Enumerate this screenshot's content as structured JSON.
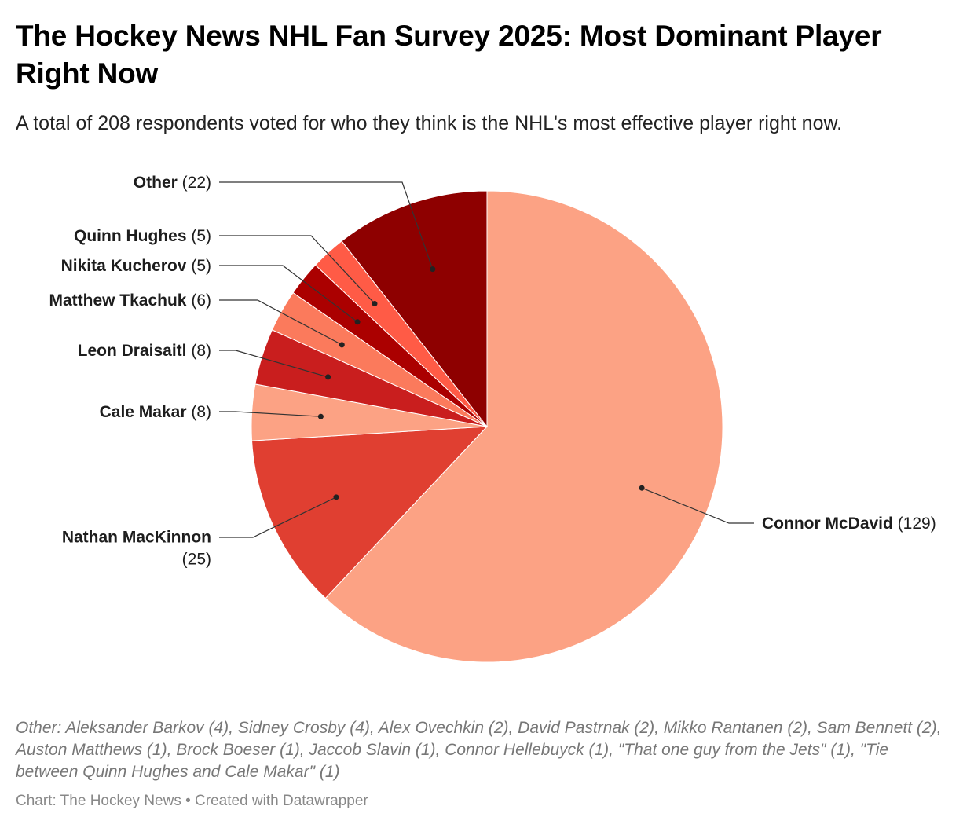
{
  "title": "The Hockey News NHL Fan Survey 2025: Most Dominant Player Right Now",
  "subtitle": "A total of 208 respondents voted for who they think is the NHL's most effective player right now.",
  "chart_data": {
    "type": "pie",
    "title": "The Hockey News NHL Fan Survey 2025: Most Dominant Player Right Now",
    "total": 208,
    "slices": [
      {
        "name": "Connor McDavid",
        "value": 129,
        "value_label": "(129)",
        "color": "#fca284"
      },
      {
        "name": "Nathan MacKinnon",
        "value": 25,
        "value_label": "(25)",
        "color": "#e03f31"
      },
      {
        "name": "Cale Makar",
        "value": 8,
        "value_label": "(8)",
        "color": "#fca284"
      },
      {
        "name": "Leon Draisaitl",
        "value": 8,
        "value_label": "(8)",
        "color": "#c91e1e"
      },
      {
        "name": "Matthew Tkachuk",
        "value": 6,
        "value_label": "(6)",
        "color": "#fb7a5c"
      },
      {
        "name": "Nikita Kucherov",
        "value": 5,
        "value_label": "(5)",
        "color": "#ab0000"
      },
      {
        "name": "Quinn Hughes",
        "value": 5,
        "value_label": "(5)",
        "color": "#ff5b46"
      },
      {
        "name": "Other",
        "value": 22,
        "value_label": "(22)",
        "color": "#8e0000"
      }
    ]
  },
  "notes": "Other: Aleksander Barkov (4), Sidney Crosby (4), Alex Ovechkin (2), David Pastrnak (2), Mikko Rantanen (2), Sam Bennett (2), Auston Matthews (1), Brock Boeser (1), Jaccob Slavin (1), Connor Hellebuyck (1), \"That one guy from the Jets\" (1), \"Tie between Quinn Hughes and Cale Makar\" (1)",
  "footer": "Chart: The Hockey News • Created with Datawrapper"
}
